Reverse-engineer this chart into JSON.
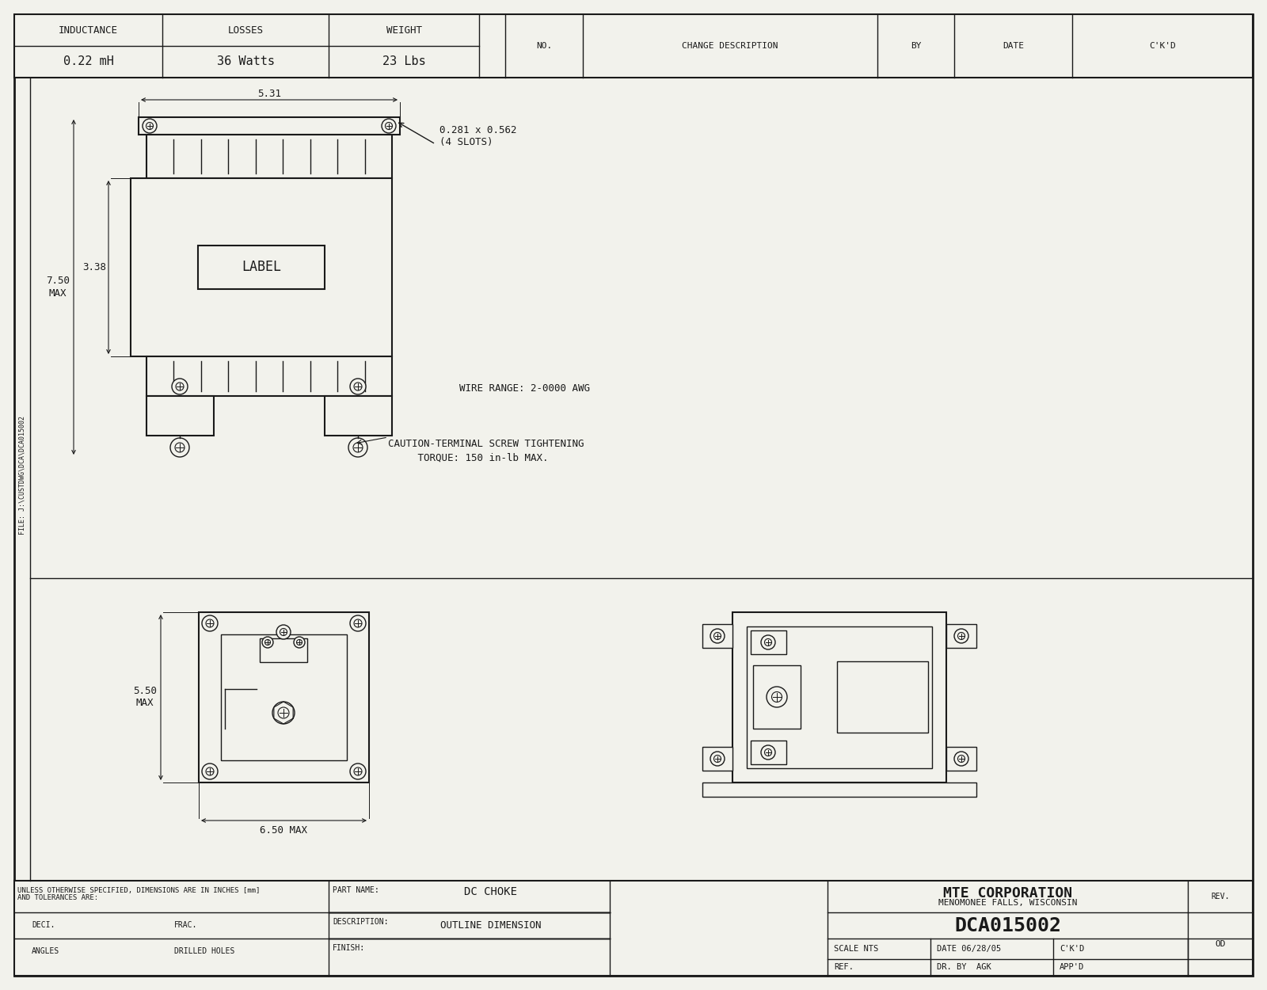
{
  "bg_color": "#f2f2ec",
  "line_color": "#1a1a1a",
  "inductance": "0.22 mH",
  "losses": "36 Watts",
  "weight": "23 Lbs",
  "dim_531": "5.31",
  "dim_338": "3.38",
  "dim_750": "7.50\nMAX",
  "dim_550": "5.50\nMAX",
  "dim_650": "6.50 MAX",
  "slot_dim": "0.281 x 0.562\n(4 SLOTS)",
  "wire_range": "WIRE RANGE: 2-0000 AWG",
  "caution_line1": "CAUTION-TERMINAL SCREW TIGHTENING",
  "caution_line2": "     TORQUE: 150 in-lb MAX.",
  "company": "MTE CORPORATION",
  "city": "MENOMONEE FALLS, WISCONSIN",
  "part_name": "DC CHOKE",
  "description": "OUTLINE DIMENSION",
  "part_number": "DCA015002",
  "scale": "NTS",
  "date": "06/28/05",
  "drawn_by": "AGK",
  "rev": "OD",
  "file_text": "FILE: J:\\CUSTDWG\\DCA\\DCA015002",
  "unless_text1": "UNLESS OTHERWISE SPECIFIED, DIMENSIONS ARE IN INCHES [mm]",
  "unless_text2": "AND TOLERANCES ARE:",
  "deci_label": "DECI.",
  "frac_label": "FRAC.",
  "angles_label": "ANGLES",
  "drilled_label": "DRILLED HOLES",
  "no_label": "NO.",
  "change_desc_label": "CHANGE DESCRIPTION",
  "by_label": "BY",
  "date_label": "DATE",
  "ckd_label": "C'K'D",
  "scale_label": "SCALE",
  "ref_label": "REF.",
  "dr_by_label": "DR. BY",
  "appd_label": "APP'D",
  "rev_label": "REV.",
  "part_name_label": "PART NAME:",
  "description_label": "DESCRIPTION:",
  "finish_label": "FINISH:"
}
